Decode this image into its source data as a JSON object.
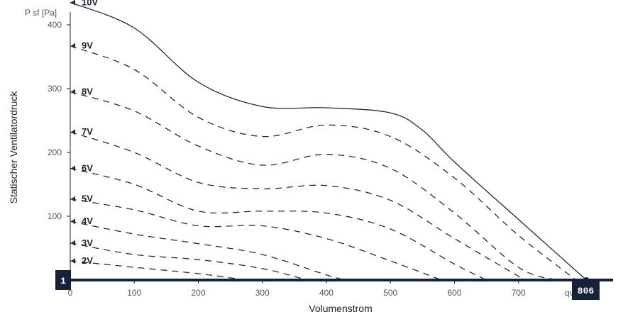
{
  "chart_data": {
    "type": "line",
    "y_unit_label": "P sf [Pa]",
    "x_unit_label": "qv",
    "xlabel": "Volumenstrom",
    "ylabel": "Statischer Ventilatordruck",
    "xlim": [
      0,
      820
    ],
    "ylim": [
      0,
      420
    ],
    "x_ticks": [
      0,
      100,
      200,
      300,
      400,
      500,
      600,
      700
    ],
    "y_ticks": [
      0,
      100,
      200,
      300,
      400
    ],
    "series": [
      {
        "name": "10V",
        "style": "solid",
        "x": [
          0,
          100,
          200,
          300,
          400,
          500,
          550,
          600,
          700,
          806
        ],
        "y": [
          435,
          395,
          310,
          272,
          270,
          262,
          235,
          185,
          95,
          0
        ]
      },
      {
        "name": "9V",
        "style": "dashed",
        "x": [
          0,
          100,
          200,
          300,
          400,
          500,
          600,
          700,
          790
        ],
        "y": [
          367,
          330,
          255,
          225,
          243,
          225,
          160,
          70,
          0
        ]
      },
      {
        "name": "8V",
        "style": "dashed",
        "x": [
          0,
          100,
          200,
          300,
          400,
          500,
          600,
          700,
          760
        ],
        "y": [
          295,
          265,
          210,
          180,
          197,
          175,
          105,
          20,
          0
        ]
      },
      {
        "name": "7V",
        "style": "dashed",
        "x": [
          0,
          100,
          200,
          300,
          400,
          500,
          600,
          710
        ],
        "y": [
          232,
          200,
          153,
          143,
          148,
          125,
          65,
          0
        ]
      },
      {
        "name": "6V",
        "style": "dashed",
        "x": [
          0,
          100,
          200,
          300,
          400,
          500,
          600,
          650
        ],
        "y": [
          175,
          150,
          108,
          108,
          105,
          80,
          25,
          0
        ]
      },
      {
        "name": "5V",
        "style": "dashed",
        "x": [
          0,
          100,
          200,
          300,
          400,
          500,
          580
        ],
        "y": [
          127,
          110,
          85,
          85,
          65,
          30,
          0
        ]
      },
      {
        "name": "4V",
        "style": "dashed",
        "x": [
          0,
          100,
          200,
          300,
          400,
          430
        ],
        "y": [
          92,
          72,
          57,
          40,
          8,
          0
        ]
      },
      {
        "name": "3V",
        "style": "dashed",
        "x": [
          0,
          100,
          200,
          300,
          370
        ],
        "y": [
          58,
          40,
          32,
          18,
          0
        ]
      },
      {
        "name": "2V",
        "style": "dashed",
        "x": [
          0,
          100,
          200,
          275
        ],
        "y": [
          30,
          20,
          10,
          0
        ]
      }
    ],
    "highlight_line_y": 0,
    "markers": {
      "left": "1",
      "right": "806"
    },
    "colors": {
      "curve": "#1f2940",
      "axis": "#222222",
      "marker_bg": "#172238",
      "highlight": "#172238"
    },
    "grid": false,
    "legend": "inline-left"
  }
}
